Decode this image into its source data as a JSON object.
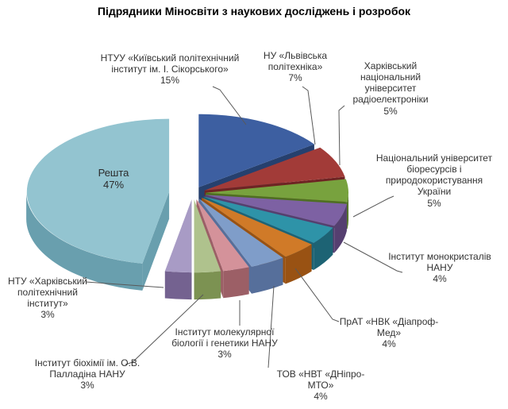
{
  "colors": {
    "background": "#FFFFFF",
    "leader_line": "#595959",
    "label_text": "#333333",
    "title_text": "#000000"
  },
  "chart_data": {
    "type": "pie",
    "style": "3d-exploded-pie",
    "title": "Підрядники Міносвіти з наукових досліджень і розробок",
    "legend_position": "none",
    "value_unit": "percent",
    "slices": [
      {
        "label": "НТУУ «Київський політехнічний інститут ім. І. Сікорського»",
        "value": 15,
        "pct_label": "15%",
        "color": "#3D5FA1",
        "side_color": "#26406E"
      },
      {
        "label": "НУ «Львівська політехніка»",
        "value": 7,
        "pct_label": "7%",
        "color": "#A23B38",
        "side_color": "#6E2423"
      },
      {
        "label": "Харківський національний університет радіоелектроніки",
        "value": 5,
        "pct_label": "5%",
        "color": "#78A23E",
        "side_color": "#4E6F22"
      },
      {
        "label": "Національний університет біоресурсів і природокористування України",
        "value": 5,
        "pct_label": "5%",
        "color": "#7D61A3",
        "side_color": "#553F70"
      },
      {
        "label": "Інститут монокристалів НАНУ",
        "value": 4,
        "pct_label": "4%",
        "color": "#2E93A8",
        "side_color": "#1D6374"
      },
      {
        "label": "ПрАТ «НВК «Діапроф-Мед»",
        "value": 4,
        "pct_label": "4%",
        "color": "#D07A28",
        "side_color": "#995213"
      },
      {
        "label": "ТОВ «НВТ «ДНіпро-МТО»",
        "value": 4,
        "pct_label": "4%",
        "color": "#7F9DC9",
        "side_color": "#566F9B"
      },
      {
        "label": "Інститут молекулярної біології і генетики НАНУ",
        "value": 3,
        "pct_label": "3%",
        "color": "#D4929A",
        "side_color": "#9C5F66"
      },
      {
        "label": "Інститут біохімії ім. О.В. Палладіна НАНУ",
        "value": 3,
        "pct_label": "3%",
        "color": "#AFC28D",
        "side_color": "#7C9252"
      },
      {
        "label": "НТУ «Харківський політехнічний інститут»",
        "value": 3,
        "pct_label": "3%",
        "color": "#A89BC5",
        "side_color": "#746290"
      },
      {
        "label": "Решта",
        "value": 47,
        "pct_label": "47%",
        "color": "#93C4D0",
        "side_color": "#699FAE"
      }
    ]
  }
}
